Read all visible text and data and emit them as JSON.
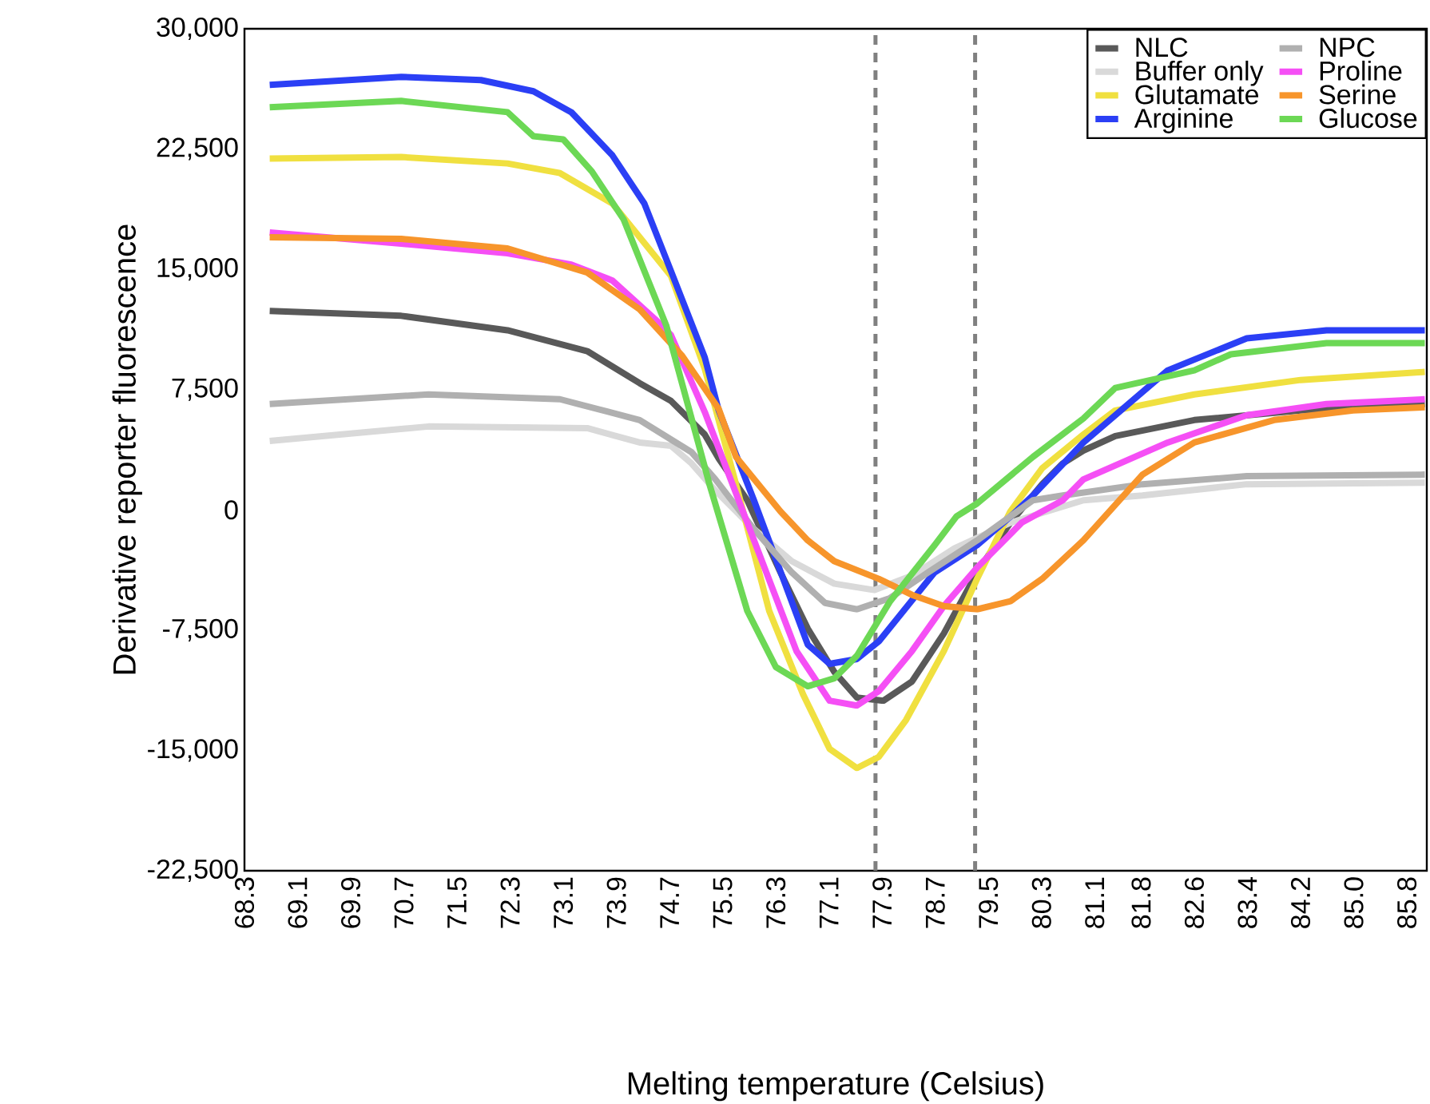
{
  "chart_data": {
    "type": "line",
    "xlabel": "Melting temperature (Celsius)",
    "ylabel": "Derivative reporter fluorescence",
    "xlim": [
      68.3,
      86.1
    ],
    "xticks": [
      68.3,
      69.1,
      69.9,
      70.7,
      71.5,
      72.3,
      73.1,
      73.9,
      74.7,
      75.5,
      76.3,
      77.1,
      77.9,
      78.7,
      79.5,
      80.3,
      81.1,
      81.8,
      82.6,
      83.4,
      84.2,
      {
        "value": 85,
        "label": "85.0"
      },
      85.8
    ],
    "ylim": [
      -22500,
      30000
    ],
    "yticks": [
      {
        "value": -22500,
        "label": "-22,500"
      },
      {
        "value": -15000,
        "label": "-15,000"
      },
      {
        "value": -7500,
        "label": "-7,500"
      },
      0,
      {
        "value": 7500,
        "label": "7,500"
      },
      {
        "value": 15000,
        "label": "15,000"
      },
      {
        "value": 22500,
        "label": "22,500"
      },
      {
        "value": 30000,
        "label": "30,000"
      }
    ],
    "legend": "top right",
    "grid": false,
    "ref_lines": [
      {
        "axis": "x",
        "value": 77.8,
        "color": "#808080",
        "line_style": "dashed"
      },
      {
        "axis": "x",
        "value": 79.3,
        "color": "#808080",
        "line_style": "dashed"
      }
    ],
    "series": [
      {
        "name": "NLC",
        "color": "#595959",
        "x": [
          68.68,
          70.66,
          72.26,
          73.46,
          74.25,
          74.72,
          75.23,
          75.44,
          75.87,
          76.37,
          76.78,
          77.18,
          77.52,
          77.92,
          78.35,
          78.83,
          79.33,
          79.83,
          80.31,
          80.62,
          80.93,
          81.41,
          82.6,
          84.2,
          86.07
        ],
        "values": [
          12400,
          12100,
          11200,
          9900,
          7900,
          6800,
          4700,
          3200,
          600,
          -3900,
          -7400,
          -10100,
          -11700,
          -11900,
          -10700,
          -7700,
          -3900,
          -800,
          1600,
          2900,
          3700,
          4600,
          5600,
          6200,
          6600
        ]
      },
      {
        "name": "Buffer only",
        "color": "#d9d9d9",
        "x": [
          68.68,
          71.07,
          73.46,
          74.25,
          74.72,
          75.03,
          75.39,
          75.97,
          76.54,
          77.18,
          77.78,
          78.35,
          78.99,
          79.83,
          80.93,
          81.82,
          83.39,
          86.07
        ],
        "values": [
          4300,
          5200,
          5100,
          4200,
          4000,
          2900,
          1200,
          -1200,
          -3200,
          -4600,
          -5000,
          -4100,
          -2400,
          -800,
          600,
          900,
          1600,
          1700
        ]
      },
      {
        "name": "Glutamate",
        "color": "#f0e040",
        "x": [
          68.68,
          70.66,
          72.26,
          73.05,
          73.84,
          74.72,
          75.23,
          75.7,
          76.2,
          76.71,
          77.11,
          77.52,
          77.85,
          78.26,
          78.83,
          79.33,
          79.83,
          80.31,
          80.93,
          81.41,
          82.6,
          84.2,
          86.07
        ],
        "values": [
          21900,
          22000,
          21600,
          21000,
          19100,
          14600,
          8800,
          1600,
          -6300,
          -11500,
          -14900,
          -16100,
          -15400,
          -13100,
          -8800,
          -4300,
          -100,
          2600,
          4700,
          6200,
          7200,
          8100,
          8600
        ]
      },
      {
        "name": "Arginine",
        "color": "#2b3ff5",
        "x": [
          68.68,
          70.66,
          71.86,
          72.65,
          73.22,
          73.84,
          74.32,
          74.72,
          75.23,
          75.44,
          75.97,
          76.78,
          77.11,
          77.52,
          77.85,
          78.69,
          79.33,
          79.81,
          80.17,
          80.93,
          82.2,
          83.39,
          84.59,
          86.07
        ],
        "values": [
          26500,
          27000,
          26800,
          26100,
          24800,
          22100,
          19100,
          14900,
          9500,
          6200,
          600,
          -8400,
          -9600,
          -9300,
          -8200,
          -3900,
          -2200,
          -500,
          900,
          4200,
          8700,
          10700,
          11200,
          11200
        ]
      },
      {
        "name": "NPC",
        "color": "#b0b0b0",
        "x": [
          68.68,
          71.07,
          73.05,
          74.25,
          75.03,
          75.39,
          75.97,
          76.54,
          77.04,
          77.52,
          78.02,
          78.59,
          79.33,
          80.17,
          80.62,
          81.82,
          83.39,
          86.07
        ],
        "values": [
          6600,
          7200,
          6900,
          5600,
          3600,
          1900,
          -1200,
          -3900,
          -5800,
          -6200,
          -5500,
          -3900,
          -1900,
          600,
          900,
          1600,
          2100,
          2200
        ]
      },
      {
        "name": "Proline",
        "color": "#f54ff5",
        "x": [
          68.68,
          70.66,
          72.26,
          73.22,
          73.84,
          74.48,
          74.72,
          75.23,
          75.87,
          76.61,
          77.11,
          77.52,
          77.85,
          78.35,
          78.83,
          79.33,
          80.0,
          80.62,
          80.93,
          82.2,
          83.39,
          84.59,
          86.07
        ],
        "values": [
          17300,
          16600,
          16000,
          15300,
          14300,
          11900,
          10900,
          6100,
          -800,
          -8800,
          -11900,
          -12200,
          -11300,
          -8800,
          -6000,
          -3600,
          -800,
          600,
          1900,
          4200,
          5900,
          6600,
          6900
        ]
      },
      {
        "name": "Serine",
        "color": "#f7952b",
        "x": [
          68.68,
          70.66,
          72.26,
          73.46,
          74.25,
          74.89,
          75.44,
          75.7,
          76.37,
          76.78,
          77.18,
          77.85,
          78.35,
          78.83,
          79.33,
          79.83,
          80.31,
          80.93,
          81.82,
          82.6,
          83.8,
          84.99,
          86.07
        ],
        "values": [
          17000,
          16900,
          16300,
          14800,
          12500,
          9600,
          6300,
          3300,
          -100,
          -1900,
          -3200,
          -4300,
          -5300,
          -6000,
          -6200,
          -5700,
          -4300,
          -1900,
          2200,
          4200,
          5600,
          6200,
          6400
        ]
      },
      {
        "name": "Glucose",
        "color": "#6cd855",
        "x": [
          68.68,
          70.66,
          72.26,
          72.65,
          73.1,
          73.53,
          74.01,
          74.65,
          75.13,
          75.3,
          75.87,
          76.3,
          76.78,
          77.18,
          77.52,
          78.02,
          78.69,
          79.02,
          79.33,
          80.17,
          80.93,
          81.41,
          82.6,
          83.15,
          84.59,
          86.07
        ],
        "values": [
          25100,
          25500,
          24800,
          23300,
          23100,
          21100,
          18100,
          11500,
          4200,
          1600,
          -6300,
          -9800,
          -11000,
          -10500,
          -9100,
          -5700,
          -2200,
          -400,
          400,
          3300,
          5700,
          7600,
          8700,
          9700,
          10400,
          10400
        ]
      }
    ]
  }
}
